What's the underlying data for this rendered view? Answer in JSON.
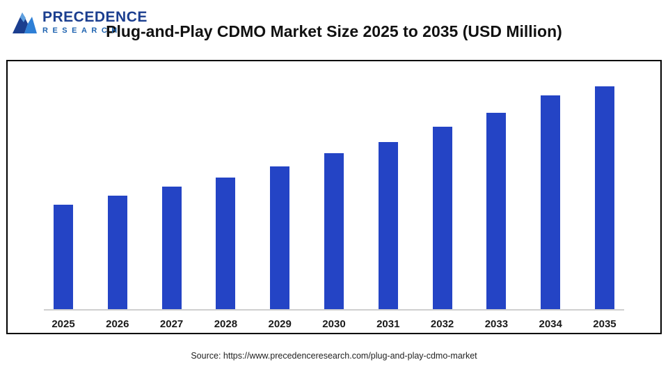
{
  "header": {
    "logo": {
      "line1": "PRECEDENCE",
      "line2": "RESEARCH"
    },
    "title": "Plug-and-Play CDMO Market Size 2025 to 2035 (USD Million)"
  },
  "chart_data": {
    "type": "bar",
    "title": "Plug-and-Play CDMO Market Size 2025 to 2035 (USD Million)",
    "categories": [
      "2025",
      "2026",
      "2027",
      "2028",
      "2029",
      "2030",
      "2031",
      "2032",
      "2033",
      "2034",
      "2035"
    ],
    "values": [
      47,
      51,
      55,
      59,
      64,
      70,
      75,
      82,
      88,
      96,
      100
    ],
    "value_scale": "relative bar heights, percent of tallest bar (chart displays no numeric axis or data labels)",
    "xlabel": "",
    "ylabel": "",
    "grid": false,
    "legend": false,
    "bar_color": "#2444c5",
    "axis_line_color": "#cfcfcf"
  },
  "footer": {
    "source": "Source: https://www.precedenceresearch.com/plug-and-play-cdmo-market"
  }
}
